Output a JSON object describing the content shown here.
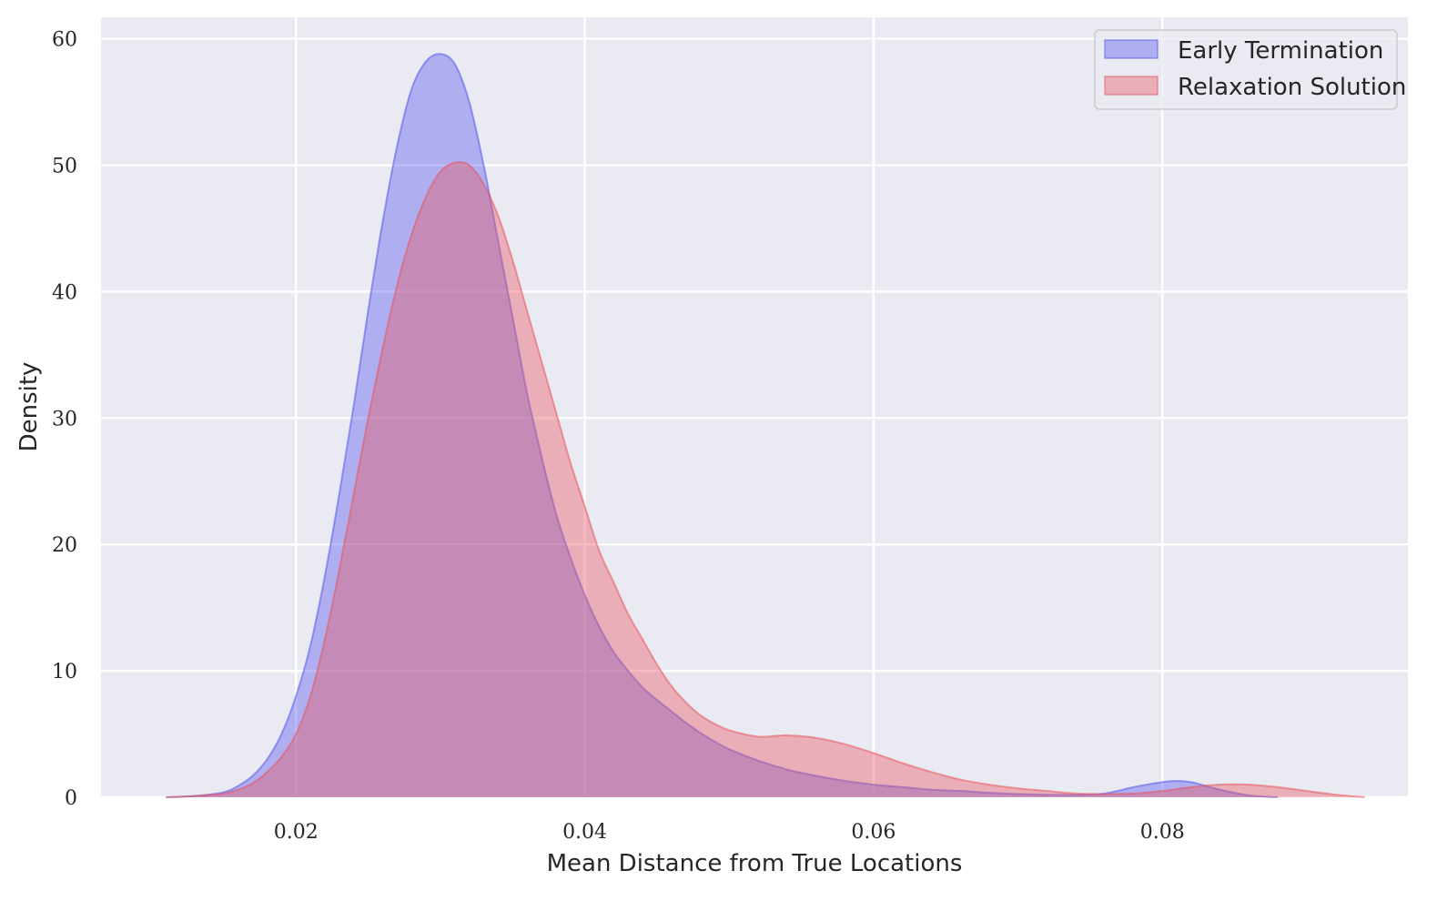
{
  "chart_data": {
    "type": "area",
    "title": "",
    "xlabel": "Mean Distance from True Locations",
    "ylabel": "Density",
    "xlim": [
      0.0065,
      0.097
    ],
    "ylim": [
      0,
      61.7
    ],
    "grid": true,
    "legend_position": "top-right",
    "x_ticks": [
      {
        "value": 0.02,
        "label": "0.02"
      },
      {
        "value": 0.04,
        "label": "0.04"
      },
      {
        "value": 0.06,
        "label": "0.06"
      },
      {
        "value": 0.08,
        "label": "0.08"
      }
    ],
    "y_ticks": [
      {
        "value": 0,
        "label": "0"
      },
      {
        "value": 10,
        "label": "10"
      },
      {
        "value": 20,
        "label": "20"
      },
      {
        "value": 30,
        "label": "30"
      },
      {
        "value": 40,
        "label": "40"
      },
      {
        "value": 50,
        "label": "50"
      },
      {
        "value": 60,
        "label": "60"
      }
    ],
    "series": [
      {
        "name": "Early Termination",
        "color": "#5555ee",
        "x": [
          0.011,
          0.013,
          0.015,
          0.016,
          0.017,
          0.018,
          0.019,
          0.02,
          0.021,
          0.022,
          0.023,
          0.024,
          0.025,
          0.026,
          0.027,
          0.028,
          0.029,
          0.03,
          0.031,
          0.032,
          0.033,
          0.034,
          0.035,
          0.036,
          0.037,
          0.038,
          0.039,
          0.04,
          0.041,
          0.042,
          0.043,
          0.044,
          0.045,
          0.046,
          0.047,
          0.048,
          0.049,
          0.05,
          0.052,
          0.054,
          0.056,
          0.058,
          0.06,
          0.062,
          0.064,
          0.066,
          0.068,
          0.07,
          0.072,
          0.074,
          0.076,
          0.078,
          0.08,
          0.081,
          0.082,
          0.083,
          0.084,
          0.085,
          0.086,
          0.087,
          0.088
        ],
        "y": [
          0.0,
          0.1,
          0.4,
          0.9,
          1.7,
          3.0,
          5.0,
          8.0,
          12.0,
          17.5,
          24.0,
          31.0,
          38.5,
          45.5,
          51.5,
          56.0,
          58.2,
          58.8,
          58.0,
          55.0,
          50.0,
          44.0,
          38.0,
          32.0,
          27.0,
          22.5,
          19.0,
          16.0,
          13.5,
          11.5,
          10.0,
          8.7,
          7.7,
          6.8,
          5.9,
          5.1,
          4.4,
          3.8,
          2.9,
          2.2,
          1.7,
          1.3,
          1.0,
          0.8,
          0.6,
          0.5,
          0.35,
          0.25,
          0.2,
          0.2,
          0.3,
          0.8,
          1.2,
          1.3,
          1.2,
          0.9,
          0.6,
          0.35,
          0.15,
          0.05,
          0.0
        ]
      },
      {
        "name": "Relaxation Solution",
        "color": "#e8555f",
        "x": [
          0.011,
          0.013,
          0.015,
          0.016,
          0.017,
          0.018,
          0.019,
          0.02,
          0.021,
          0.022,
          0.023,
          0.024,
          0.025,
          0.026,
          0.027,
          0.028,
          0.029,
          0.03,
          0.031,
          0.032,
          0.033,
          0.034,
          0.035,
          0.036,
          0.037,
          0.038,
          0.039,
          0.04,
          0.041,
          0.042,
          0.043,
          0.044,
          0.045,
          0.046,
          0.047,
          0.048,
          0.049,
          0.05,
          0.052,
          0.054,
          0.056,
          0.058,
          0.06,
          0.062,
          0.064,
          0.066,
          0.068,
          0.07,
          0.072,
          0.074,
          0.076,
          0.078,
          0.08,
          0.082,
          0.084,
          0.086,
          0.088,
          0.09,
          0.092,
          0.094
        ],
        "y": [
          0.0,
          0.1,
          0.3,
          0.6,
          1.1,
          2.0,
          3.2,
          5.0,
          8.0,
          12.5,
          18.0,
          24.0,
          30.0,
          35.5,
          40.5,
          44.5,
          47.5,
          49.5,
          50.2,
          50.0,
          48.5,
          46.0,
          42.5,
          38.5,
          34.5,
          30.5,
          26.5,
          23.0,
          19.5,
          17.0,
          14.5,
          12.5,
          10.5,
          8.8,
          7.5,
          6.5,
          5.8,
          5.3,
          4.8,
          4.9,
          4.7,
          4.2,
          3.5,
          2.7,
          2.0,
          1.4,
          1.0,
          0.7,
          0.5,
          0.3,
          0.25,
          0.3,
          0.5,
          0.8,
          1.0,
          1.0,
          0.8,
          0.5,
          0.2,
          0.0
        ]
      }
    ]
  }
}
